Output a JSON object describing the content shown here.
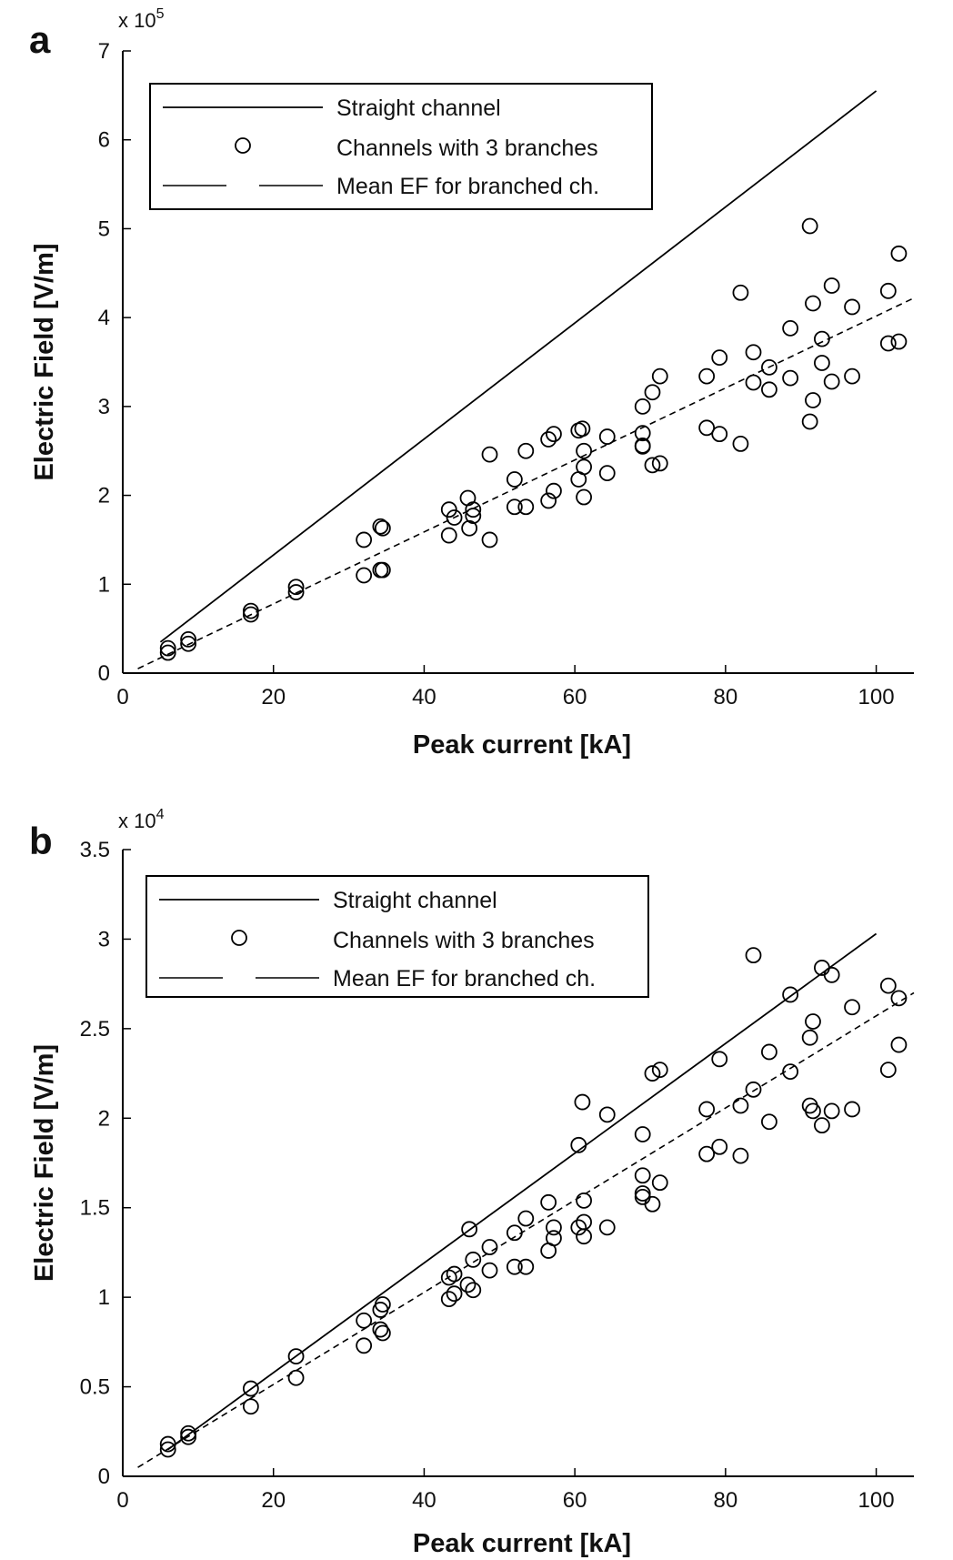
{
  "chart_data": [
    {
      "type": "scatter",
      "panel": "a",
      "scale_base": "x 10",
      "scale_exponent": "5",
      "multiplier": 100000,
      "xlabel": "Peak current [kA]",
      "ylabel": "Electric Field [V/m]",
      "xlim": [
        0,
        105
      ],
      "ylim": [
        0,
        7
      ],
      "xticks": [
        "0",
        "20",
        "40",
        "60",
        "80",
        "100"
      ],
      "yticks": [
        "0",
        "1",
        "2",
        "3",
        "4",
        "5",
        "6",
        "7"
      ],
      "legend": [
        "Straight channel",
        "Channels with 3 branches",
        "Mean EF for branched ch."
      ],
      "legend_position": "top-left",
      "series": [
        {
          "name": "Straight channel",
          "style": "solid",
          "x": [
            5,
            100
          ],
          "y": [
            0.35,
            6.55
          ]
        },
        {
          "name": "Mean EF for branched ch.",
          "style": "dashed",
          "x": [
            2,
            105
          ],
          "y": [
            0.05,
            4.22
          ]
        },
        {
          "name": "Channels with 3 branches",
          "style": "marker",
          "x": [
            6,
            6,
            8.7,
            8.7,
            17,
            17,
            23,
            23,
            32,
            32,
            34.2,
            34.5,
            34.2,
            34.5,
            43.3,
            43.3,
            44,
            45.8,
            46,
            46.5,
            46.5,
            48.7,
            48.7,
            52,
            52,
            53.5,
            53.5,
            56.5,
            56.5,
            57.2,
            57.2,
            60.5,
            61,
            60.5,
            61.2,
            61.2,
            61.2,
            64.3,
            64.3,
            69,
            69,
            69,
            69,
            70.3,
            70.3,
            71.3,
            71.3,
            77.5,
            77.5,
            79.2,
            79.2,
            82,
            82,
            83.7,
            83.7,
            85.8,
            85.8,
            88.6,
            88.6,
            91.2,
            91.2,
            91.6,
            91.6,
            92.8,
            92.8,
            94.1,
            94.1,
            96.8,
            96.8,
            101.6,
            101.6,
            103,
            103
          ],
          "y": [
            0.28,
            0.23,
            0.38,
            0.33,
            0.7,
            0.66,
            0.97,
            0.91,
            1.5,
            1.1,
            1.65,
            1.63,
            1.16,
            1.16,
            1.84,
            1.55,
            1.75,
            1.97,
            1.63,
            1.84,
            1.77,
            2.46,
            1.5,
            2.18,
            1.87,
            2.5,
            1.87,
            2.63,
            1.94,
            2.69,
            2.05,
            2.73,
            2.75,
            2.18,
            2.5,
            2.32,
            1.98,
            2.66,
            2.25,
            3.0,
            2.7,
            2.56,
            2.55,
            3.16,
            2.34,
            3.34,
            2.36,
            3.34,
            2.76,
            3.55,
            2.69,
            4.28,
            2.58,
            3.61,
            3.27,
            3.44,
            3.19,
            3.88,
            3.32,
            5.03,
            2.83,
            4.16,
            3.07,
            3.76,
            3.49,
            4.36,
            3.28,
            4.12,
            3.34,
            4.3,
            3.71,
            4.72,
            3.73
          ]
        }
      ]
    },
    {
      "type": "scatter",
      "panel": "b",
      "scale_base": "x 10",
      "scale_exponent": "4",
      "multiplier": 10000,
      "xlabel": "Peak current [kA]",
      "ylabel": "Electric Field [V/m]",
      "xlim": [
        0,
        105
      ],
      "ylim": [
        0,
        3.5
      ],
      "xticks": [
        "0",
        "20",
        "40",
        "60",
        "80",
        "100"
      ],
      "yticks": [
        "0",
        "0.5",
        "1",
        "1.5",
        "2",
        "2.5",
        "3",
        "3.5"
      ],
      "legend": [
        "Straight channel",
        "Channels with 3 branches",
        "Mean EF for branched ch."
      ],
      "legend_position": "top-left",
      "series": [
        {
          "name": "Straight channel",
          "style": "solid",
          "x": [
            6,
            100
          ],
          "y": [
            0.15,
            3.03
          ]
        },
        {
          "name": "Mean EF for branched ch.",
          "style": "dashed",
          "x": [
            2,
            105
          ],
          "y": [
            0.05,
            2.7
          ]
        },
        {
          "name": "Channels with 3 branches",
          "style": "marker",
          "x": [
            6,
            6,
            8.7,
            8.7,
            17,
            17,
            23,
            23,
            32,
            32,
            34.2,
            34.5,
            34.2,
            34.5,
            43.3,
            43.3,
            44,
            44,
            45.8,
            46,
            46.5,
            46.5,
            48.7,
            48.7,
            52,
            52,
            53.5,
            53.5,
            56.5,
            56.5,
            57.2,
            57.2,
            60.5,
            61,
            60.5,
            61.2,
            61.2,
            61.2,
            64.3,
            64.3,
            69,
            69,
            69,
            69,
            70.3,
            70.3,
            71.3,
            71.3,
            77.5,
            77.5,
            79.2,
            79.2,
            82,
            82,
            83.7,
            83.7,
            85.8,
            85.8,
            88.6,
            88.6,
            91.2,
            91.2,
            91.6,
            91.6,
            92.8,
            92.8,
            94.1,
            94.1,
            96.8,
            96.8,
            101.6,
            101.6,
            103,
            103
          ],
          "y": [
            0.18,
            0.15,
            0.24,
            0.22,
            0.49,
            0.39,
            0.67,
            0.55,
            0.87,
            0.73,
            0.93,
            0.96,
            0.82,
            0.8,
            1.11,
            0.99,
            1.13,
            1.02,
            1.07,
            1.38,
            1.21,
            1.04,
            1.28,
            1.15,
            1.36,
            1.17,
            1.44,
            1.17,
            1.53,
            1.26,
            1.39,
            1.33,
            1.85,
            2.09,
            1.39,
            1.54,
            1.42,
            1.34,
            2.02,
            1.39,
            1.91,
            1.68,
            1.58,
            1.56,
            2.25,
            1.52,
            2.27,
            1.64,
            2.05,
            1.8,
            2.33,
            1.84,
            2.07,
            1.79,
            2.91,
            2.16,
            2.37,
            1.98,
            2.69,
            2.26,
            2.45,
            2.07,
            2.54,
            2.04,
            2.84,
            1.96,
            2.8,
            2.04,
            2.62,
            2.05,
            2.74,
            2.27,
            2.67,
            2.41
          ]
        }
      ]
    }
  ]
}
